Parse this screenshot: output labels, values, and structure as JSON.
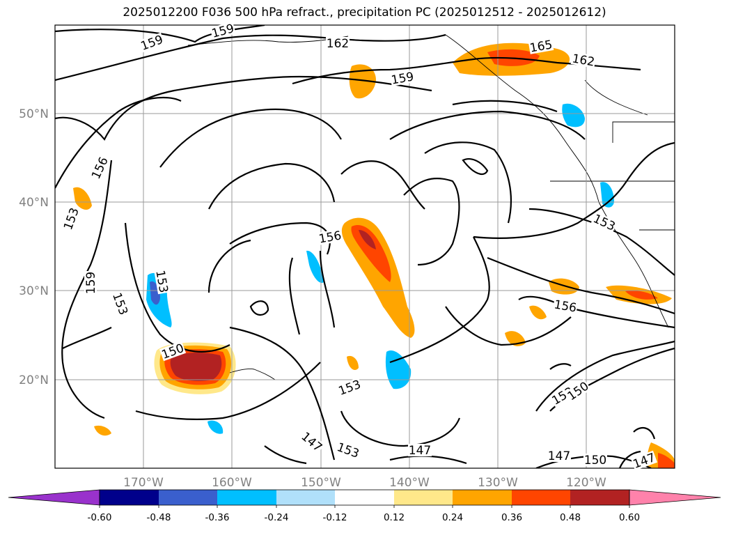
{
  "title": "2025012200 F036 500 hPa refract., precipitation PC (2025012512 - 2025012612)",
  "map": {
    "lon_ticks": [
      "170°W",
      "160°W",
      "150°W",
      "140°W",
      "130°W",
      "120°W"
    ],
    "lat_ticks": [
      "50°N",
      "40°N",
      "30°N",
      "20°N"
    ],
    "contour_labels": [
      "159",
      "159",
      "162",
      "165",
      "162",
      "159",
      "156",
      "153",
      "159",
      "153",
      "153",
      "156",
      "153",
      "156",
      "150",
      "153",
      "153",
      "150",
      "147",
      "153",
      "147",
      "147",
      "150",
      "147"
    ]
  },
  "colorbar": {
    "ticks": [
      "-0.60",
      "-0.48",
      "-0.36",
      "-0.24",
      "-0.12",
      "0.12",
      "0.24",
      "0.36",
      "0.48",
      "0.60"
    ],
    "colors": [
      "#9932cc",
      "#00008b",
      "#3a5fcd",
      "#00bfff",
      "#b0e0fa",
      "#ffffff",
      "#ffe88a",
      "#ffa500",
      "#ff4500",
      "#b22222",
      "#ff82ab"
    ]
  }
}
